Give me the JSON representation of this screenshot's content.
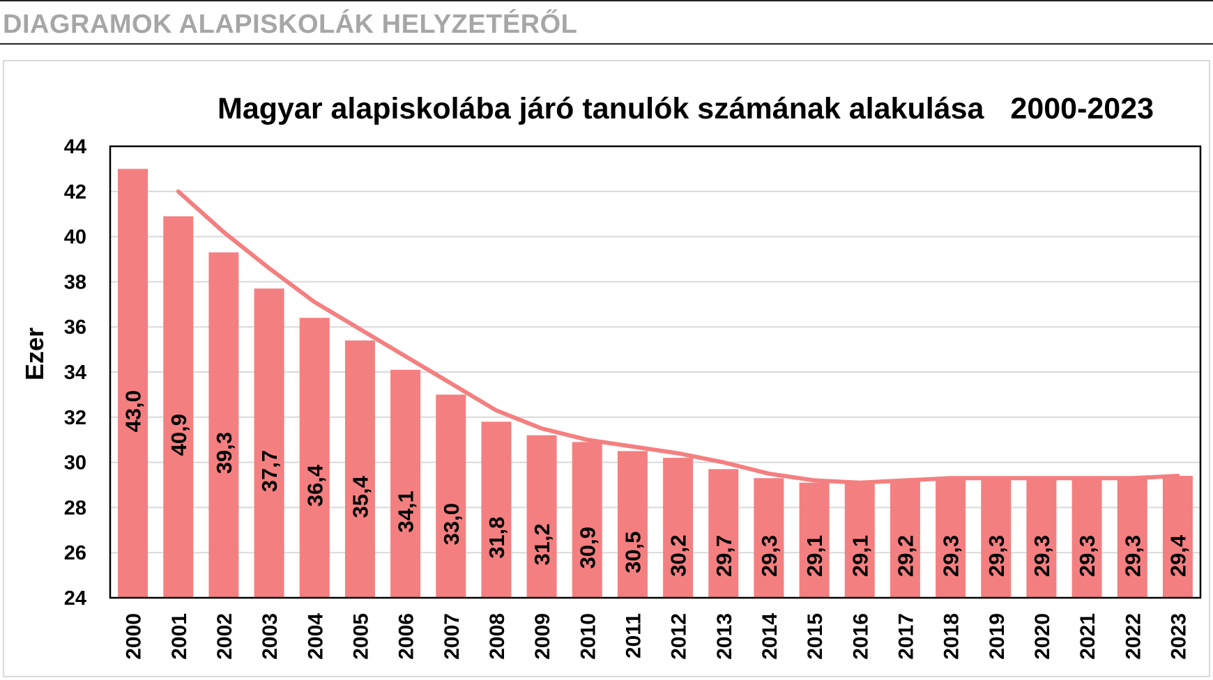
{
  "header": {
    "title": "DIAGRAMOK ALAPISKOLÁK HELYZETÉRŐL"
  },
  "chart_data": {
    "type": "bar",
    "title": "Magyar alapiskolába járó tanulók számának alakulása",
    "title_years": "2000-2023",
    "xlabel": "",
    "ylabel": "Ezer",
    "ylim": [
      24,
      44
    ],
    "yticks": [
      "24",
      "26",
      "28",
      "30",
      "32",
      "34",
      "36",
      "38",
      "40",
      "42",
      "44"
    ],
    "grid": true,
    "legend": "none",
    "categories": [
      "2000",
      "2001",
      "2002",
      "2003",
      "2004",
      "2005",
      "2006",
      "2007",
      "2008",
      "2009",
      "2010",
      "2011",
      "2012",
      "2013",
      "2014",
      "2015",
      "2016",
      "2017",
      "2018",
      "2019",
      "2020",
      "2021",
      "2022",
      "2023"
    ],
    "values": [
      43.0,
      40.9,
      39.3,
      37.7,
      36.4,
      35.4,
      34.1,
      33.0,
      31.8,
      31.2,
      30.9,
      30.5,
      30.2,
      29.7,
      29.3,
      29.1,
      29.1,
      29.2,
      29.3,
      29.3,
      29.3,
      29.3,
      29.3,
      29.4
    ],
    "data_labels": [
      "43,0",
      "40,9",
      "39,3",
      "37,7",
      "36,4",
      "35,4",
      "34,1",
      "33,0",
      "31,8",
      "31,2",
      "30,9",
      "30,5",
      "30,2",
      "29,7",
      "29,3",
      "29,1",
      "29,1",
      "29,2",
      "29,3",
      "29,3",
      "29,3",
      "29,3",
      "29,3",
      "29,4"
    ],
    "trendline": {
      "type": "line",
      "x": [
        "2001",
        "2002",
        "2003",
        "2004",
        "2005",
        "2006",
        "2007",
        "2008",
        "2009",
        "2010",
        "2011",
        "2012",
        "2013",
        "2014",
        "2015",
        "2016",
        "2017",
        "2018",
        "2019",
        "2020",
        "2021",
        "2022",
        "2023"
      ],
      "values": [
        42.0,
        40.2,
        38.6,
        37.1,
        35.9,
        34.7,
        33.5,
        32.3,
        31.5,
        31.0,
        30.7,
        30.4,
        30.0,
        29.5,
        29.2,
        29.1,
        29.2,
        29.3,
        29.3,
        29.3,
        29.3,
        29.3,
        29.4
      ]
    },
    "colors": {
      "bar": "#f47f80",
      "line": "#f47f80",
      "grid": "#d9d9d9"
    }
  }
}
